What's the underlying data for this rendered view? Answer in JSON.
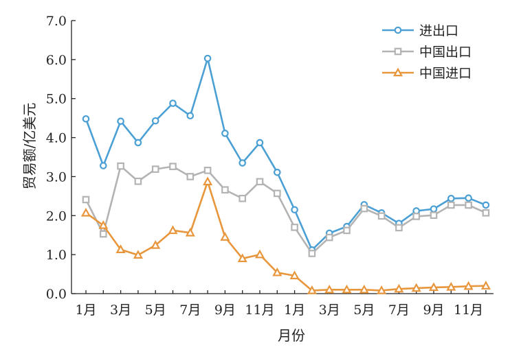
{
  "chart_data": {
    "type": "line",
    "xlabel": "月份",
    "ylabel": "贸易额/亿美元",
    "ylim": [
      0,
      7
    ],
    "yticks": [
      "0.0",
      "1.0",
      "2.0",
      "3.0",
      "4.0",
      "5.0",
      "6.0",
      "7.0"
    ],
    "categories": [
      "1月",
      "2月",
      "3月",
      "4月",
      "5月",
      "6月",
      "7月",
      "8月",
      "9月",
      "10月",
      "11月",
      "12月",
      "1月",
      "2月",
      "3月",
      "4月",
      "5月",
      "6月",
      "7月",
      "8月",
      "9月",
      "10月",
      "11月",
      "12月"
    ],
    "x_tick_labels": [
      "1月",
      "3月",
      "5月",
      "7月",
      "9月",
      "11月",
      "1月",
      "3月",
      "5月",
      "7月",
      "9月",
      "11月"
    ],
    "grid": false,
    "legend_position": "top-right",
    "series": [
      {
        "name": "进出口",
        "color": "#4a9fd4",
        "marker": "circle",
        "values": [
          4.48,
          3.28,
          4.42,
          3.87,
          4.43,
          4.88,
          4.56,
          6.03,
          4.11,
          3.35,
          3.87,
          3.11,
          2.15,
          1.12,
          1.55,
          1.72,
          2.28,
          2.07,
          1.8,
          2.12,
          2.17,
          2.44,
          2.45,
          2.27
        ]
      },
      {
        "name": "中国出口",
        "color": "#b3b3b3",
        "marker": "square",
        "values": [
          2.41,
          1.53,
          3.27,
          2.88,
          3.19,
          3.26,
          3.0,
          3.16,
          2.66,
          2.44,
          2.87,
          2.57,
          1.7,
          1.03,
          1.44,
          1.62,
          2.18,
          1.99,
          1.69,
          1.98,
          2.01,
          2.27,
          2.27,
          2.07
        ]
      },
      {
        "name": "中国进口",
        "color": "#e8963c",
        "marker": "triangle",
        "values": [
          2.07,
          1.75,
          1.13,
          0.99,
          1.24,
          1.62,
          1.56,
          2.87,
          1.45,
          0.9,
          1.0,
          0.54,
          0.46,
          0.08,
          0.1,
          0.1,
          0.1,
          0.08,
          0.12,
          0.14,
          0.16,
          0.17,
          0.19,
          0.2
        ]
      }
    ]
  }
}
